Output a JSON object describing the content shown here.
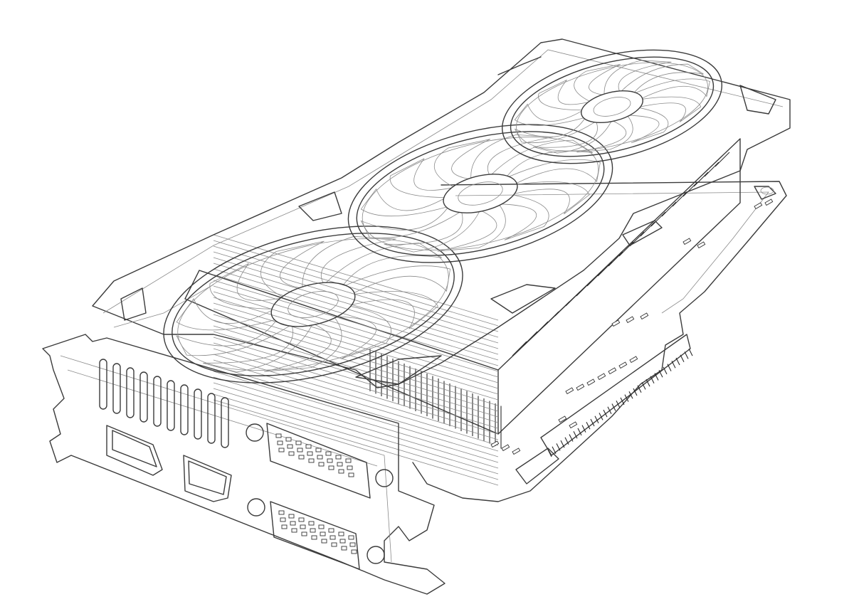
{
  "colors": {
    "background": "#ffffff",
    "line": "#3b3b3b",
    "thin_line": "#8a8a8a"
  },
  "parts": {
    "fans": [
      "fan-1",
      "fan-2",
      "fan-3"
    ],
    "ports": [
      "displayport",
      "hdmi-port",
      "dvi-port-top",
      "dvi-port-bottom"
    ],
    "other": [
      "pcb",
      "heatsink",
      "shroud",
      "io-bracket",
      "pcie-connector"
    ]
  }
}
